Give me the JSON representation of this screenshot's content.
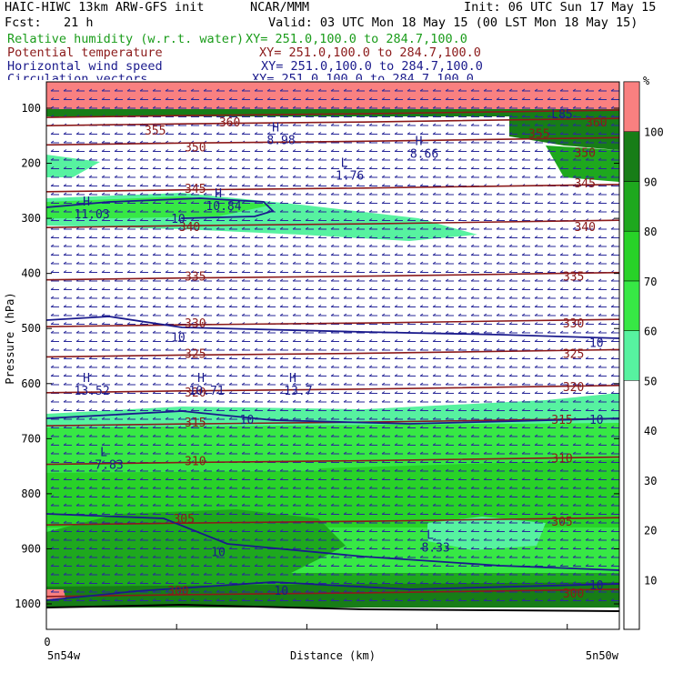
{
  "header": {
    "model": "HAIC-HIWC 13km ARW-GFS init",
    "org": "NCAR/MMM",
    "init": "Init: 06 UTC Sun 17 May 15",
    "fcst": "Fcst:   21 h",
    "valid": "Valid: 03 UTC Mon 18 May 15 (00 LST Mon 18 May 15)"
  },
  "fields": [
    {
      "name": "Relative humidity (w.r.t. water)",
      "xy": "XY= 251.0,100.0 to 284.7,100.0",
      "color": "#1a9c1a"
    },
    {
      "name": "Potential temperature",
      "xy": "XY= 251.0,100.0 to 284.7,100.0",
      "color": "#8b1a1a"
    },
    {
      "name": "Horizontal wind speed",
      "xy": "XY= 251.0,100.0 to 284.7,100.0",
      "color": "#1a1a8c"
    },
    {
      "name": "Circulation vectors",
      "xy": "XY= 251.0,100.0 to 284.7,100.0",
      "color": "#1a1a8c"
    }
  ],
  "chart_data": {
    "type": "heatmap",
    "title": "HAIC-HIWC 13km ARW-GFS init",
    "xlabel": "Distance (km)",
    "ylabel": "Pressure (hPa)",
    "x_ticks": [
      "0"
    ],
    "x_endpoints": [
      "5n54w",
      "5n50w"
    ],
    "y_ticks": [
      100,
      200,
      300,
      400,
      500,
      600,
      700,
      800,
      900,
      1000
    ],
    "ylim": [
      1050,
      50
    ],
    "colorbar": {
      "unit": "%",
      "levels": [
        10,
        20,
        30,
        40,
        50,
        60,
        70,
        80,
        90,
        100
      ],
      "filled_colors": [
        {
          "from": 50,
          "to": 60,
          "color": "#57f2a0"
        },
        {
          "from": 60,
          "to": 70,
          "color": "#37e845"
        },
        {
          "from": 70,
          "to": 80,
          "color": "#28d228"
        },
        {
          "from": 80,
          "to": 90,
          "color": "#1ea81e"
        },
        {
          "from": 90,
          "to": 100,
          "color": "#177d17"
        },
        {
          "from": 100,
          "to": 110,
          "color": "#f98080"
        }
      ]
    },
    "theta_contours": [
      {
        "value": 300,
        "p": 980
      },
      {
        "value": 305,
        "p": 850
      },
      {
        "value": 310,
        "p": 740
      },
      {
        "value": 315,
        "p": 670
      },
      {
        "value": 320,
        "p": 610
      },
      {
        "value": 325,
        "p": 545
      },
      {
        "value": 330,
        "p": 490
      },
      {
        "value": 335,
        "p": 405
      },
      {
        "value": 340,
        "p": 310
      },
      {
        "value": 345,
        "p": 245
      },
      {
        "value": 350,
        "p": 160
      },
      {
        "value": 355,
        "p": 125
      },
      {
        "value": 360,
        "p": 110
      }
    ],
    "theta_labels": [
      {
        "text": "300",
        "x": 0.23,
        "p": 975
      },
      {
        "text": "300",
        "x": 0.92,
        "p": 980
      },
      {
        "text": "305",
        "x": 0.24,
        "p": 845
      },
      {
        "text": "305",
        "x": 0.9,
        "p": 850
      },
      {
        "text": "310",
        "x": 0.26,
        "p": 740
      },
      {
        "text": "310",
        "x": 0.9,
        "p": 735
      },
      {
        "text": "315",
        "x": 0.26,
        "p": 670
      },
      {
        "text": "315",
        "x": 0.9,
        "p": 665
      },
      {
        "text": "320",
        "x": 0.26,
        "p": 615
      },
      {
        "text": "320",
        "x": 0.92,
        "p": 605
      },
      {
        "text": "325",
        "x": 0.26,
        "p": 545
      },
      {
        "text": "325",
        "x": 0.92,
        "p": 545
      },
      {
        "text": "330",
        "x": 0.26,
        "p": 490
      },
      {
        "text": "330",
        "x": 0.92,
        "p": 490
      },
      {
        "text": "335",
        "x": 0.26,
        "p": 405
      },
      {
        "text": "335",
        "x": 0.92,
        "p": 405
      },
      {
        "text": "340",
        "x": 0.25,
        "p": 315
      },
      {
        "text": "340",
        "x": 0.94,
        "p": 315
      },
      {
        "text": "345",
        "x": 0.26,
        "p": 245
      },
      {
        "text": "345",
        "x": 0.94,
        "p": 235
      },
      {
        "text": "350",
        "x": 0.26,
        "p": 170
      },
      {
        "text": "350",
        "x": 0.94,
        "p": 180
      },
      {
        "text": "355",
        "x": 0.19,
        "p": 140
      },
      {
        "text": "355",
        "x": 0.86,
        "p": 145
      },
      {
        "text": "360",
        "x": 0.32,
        "p": 125
      },
      {
        "text": "360",
        "x": 0.96,
        "p": 125
      }
    ],
    "wind_labels": [
      {
        "text": "10",
        "x": 0.23,
        "p": 300
      },
      {
        "text": "10",
        "x": 0.23,
        "p": 515
      },
      {
        "text": "10",
        "x": 0.96,
        "p": 525
      },
      {
        "text": "10",
        "x": 0.35,
        "p": 665
      },
      {
        "text": "10",
        "x": 0.96,
        "p": 665
      },
      {
        "text": "10",
        "x": 0.3,
        "p": 905
      },
      {
        "text": "10",
        "x": 0.41,
        "p": 975
      },
      {
        "text": "10",
        "x": 0.96,
        "p": 965
      },
      {
        "text": "L85",
        "x": 0.9,
        "p": 110
      }
    ],
    "extrema": [
      {
        "kind": "H",
        "value": "11.03",
        "x": 0.07,
        "p": 290
      },
      {
        "kind": "H",
        "value": "10.84",
        "x": 0.3,
        "p": 275
      },
      {
        "kind": "H",
        "value": "8.98",
        "x": 0.4,
        "p": 155
      },
      {
        "kind": "H",
        "value": "8.66",
        "x": 0.65,
        "p": 180
      },
      {
        "kind": "L",
        "value": "1.76",
        "x": 0.52,
        "p": 220
      },
      {
        "kind": "H",
        "value": "13.52",
        "x": 0.07,
        "p": 610
      },
      {
        "kind": "H",
        "value": "10.71",
        "x": 0.27,
        "p": 610
      },
      {
        "kind": "H",
        "value": "13.7",
        "x": 0.43,
        "p": 610
      },
      {
        "kind": "L",
        "value": "7.83",
        "x": 0.1,
        "p": 745
      },
      {
        "kind": "L",
        "value": "8.33",
        "x": 0.67,
        "p": 895
      }
    ]
  }
}
